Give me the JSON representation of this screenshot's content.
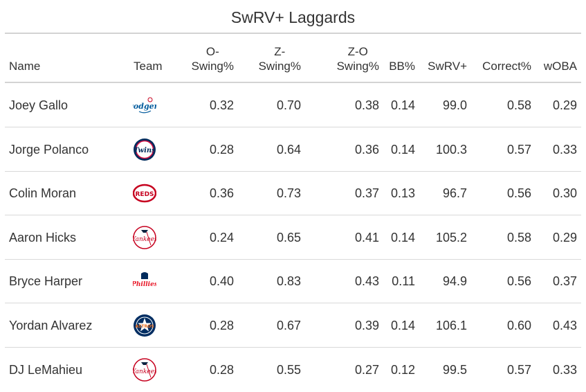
{
  "chart_data": {
    "type": "table",
    "title": "SwRV+ Laggards",
    "columns": [
      {
        "key": "name",
        "line1": "",
        "line2": "Name"
      },
      {
        "key": "team",
        "line1": "",
        "line2": "Team"
      },
      {
        "key": "o_swing",
        "line1": "O-",
        "line2": "Swing%"
      },
      {
        "key": "z_swing",
        "line1": "Z-",
        "line2": "Swing%"
      },
      {
        "key": "zo_swing",
        "line1": "Z-O",
        "line2": "Swing%"
      },
      {
        "key": "bb",
        "line1": "",
        "line2": "BB%"
      },
      {
        "key": "swrv",
        "line1": "",
        "line2": "SwRV+"
      },
      {
        "key": "correct",
        "line1": "",
        "line2": "Correct%"
      },
      {
        "key": "woba",
        "line1": "",
        "line2": "wOBA"
      }
    ],
    "rows": [
      {
        "name": "Joey Gallo",
        "team_logo": "dodgers-logo-icon",
        "o_swing": "0.32",
        "z_swing": "0.70",
        "zo_swing": "0.38",
        "bb": "0.14",
        "swrv": "99.0",
        "correct": "0.58",
        "woba": "0.29"
      },
      {
        "name": "Jorge Polanco",
        "team_logo": "twins-logo-icon",
        "o_swing": "0.28",
        "z_swing": "0.64",
        "zo_swing": "0.36",
        "bb": "0.14",
        "swrv": "100.3",
        "correct": "0.57",
        "woba": "0.33"
      },
      {
        "name": "Colin Moran",
        "team_logo": "reds-logo-icon",
        "o_swing": "0.36",
        "z_swing": "0.73",
        "zo_swing": "0.37",
        "bb": "0.13",
        "swrv": "96.7",
        "correct": "0.56",
        "woba": "0.30"
      },
      {
        "name": "Aaron Hicks",
        "team_logo": "yankees-logo-icon",
        "o_swing": "0.24",
        "z_swing": "0.65",
        "zo_swing": "0.41",
        "bb": "0.14",
        "swrv": "105.2",
        "correct": "0.58",
        "woba": "0.29"
      },
      {
        "name": "Bryce Harper",
        "team_logo": "phillies-logo-icon",
        "o_swing": "0.40",
        "z_swing": "0.83",
        "zo_swing": "0.43",
        "bb": "0.11",
        "swrv": "94.9",
        "correct": "0.56",
        "woba": "0.37"
      },
      {
        "name": "Yordan Alvarez",
        "team_logo": "astros-logo-icon",
        "o_swing": "0.28",
        "z_swing": "0.67",
        "zo_swing": "0.39",
        "bb": "0.14",
        "swrv": "106.1",
        "correct": "0.60",
        "woba": "0.43"
      },
      {
        "name": "DJ LeMahieu",
        "team_logo": "yankees-logo-icon",
        "o_swing": "0.28",
        "z_swing": "0.55",
        "zo_swing": "0.27",
        "bb": "0.12",
        "swrv": "99.5",
        "correct": "0.57",
        "woba": "0.33"
      }
    ]
  },
  "colors": {
    "text": "#333333",
    "rule": "#d3d3d3",
    "dodgers": "#005a9c",
    "twins": "#002b5c",
    "twins_red": "#d31145",
    "reds": "#c6011f",
    "yankees": "#0c2340",
    "phillies": "#e81828",
    "astros": "#002d62",
    "astros_orange": "#eb6e1f"
  }
}
